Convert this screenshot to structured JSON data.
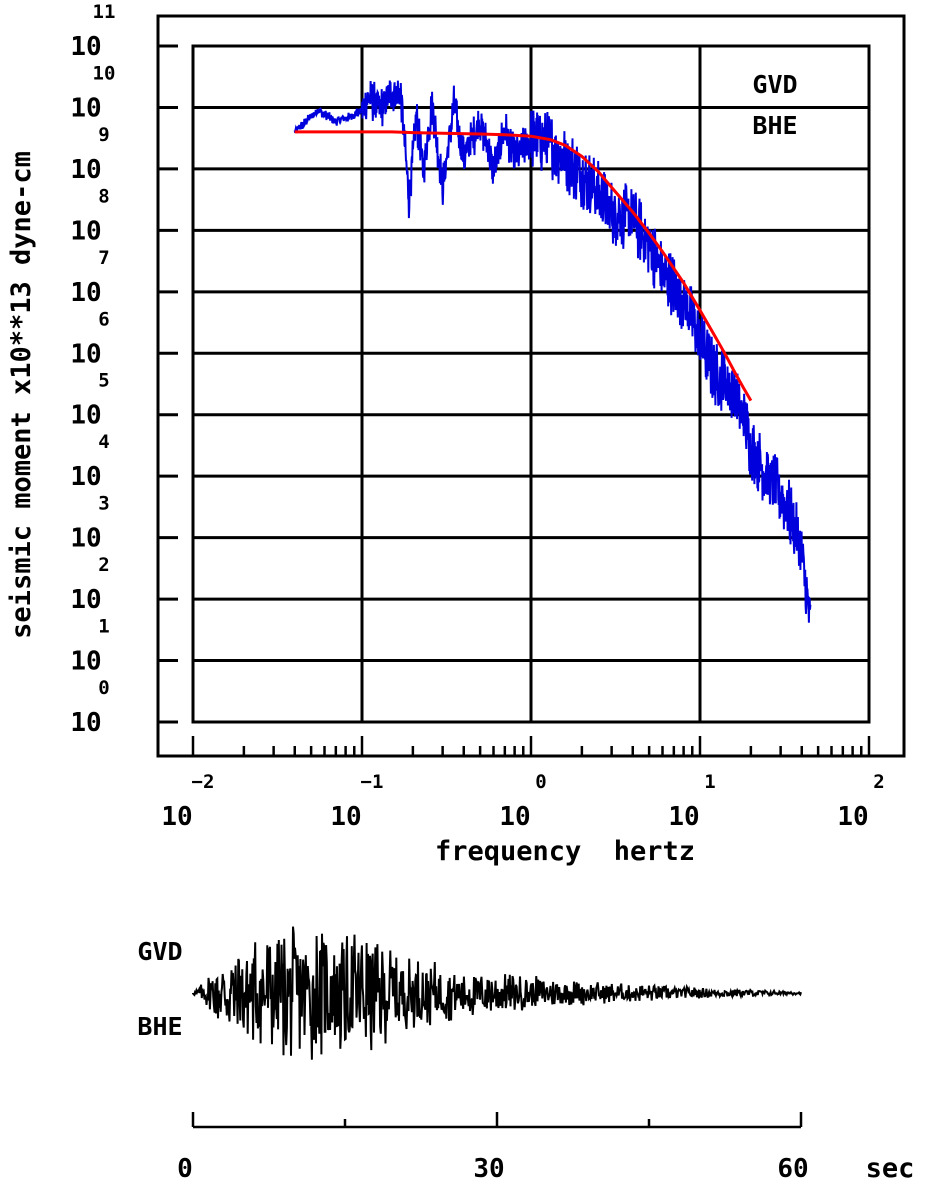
{
  "chart_data": [
    {
      "type": "line",
      "title": "",
      "xlabel": "frequency  hertz",
      "ylabel": "seismic moment x10**13 dyne-cm",
      "x_scale": "log",
      "y_scale": "log",
      "xlim": [
        0.01,
        100
      ],
      "ylim": [
        1,
        100000000000
      ],
      "grid": true,
      "x_ticks": [
        {
          "base": "10",
          "exp": "−2"
        },
        {
          "base": "10",
          "exp": "−1"
        },
        {
          "base": "10",
          "exp": "0"
        },
        {
          "base": "10",
          "exp": "1"
        },
        {
          "base": "10",
          "exp": "2"
        }
      ],
      "y_ticks": [
        {
          "base": "10",
          "exp": "0"
        },
        {
          "base": "10",
          "exp": "1"
        },
        {
          "base": "10",
          "exp": "2"
        },
        {
          "base": "10",
          "exp": "3"
        },
        {
          "base": "10",
          "exp": "4"
        },
        {
          "base": "10",
          "exp": "5"
        },
        {
          "base": "10",
          "exp": "6"
        },
        {
          "base": "10",
          "exp": "7"
        },
        {
          "base": "10",
          "exp": "8"
        },
        {
          "base": "10",
          "exp": "9"
        },
        {
          "base": "10",
          "exp": "10"
        },
        {
          "base": "10",
          "exp": "11"
        }
      ],
      "annotations": [
        "GVD",
        "BHE"
      ],
      "series": [
        {
          "color": "#0000dd",
          "x": [
            0.04,
            0.055,
            0.07,
            0.085,
            0.1,
            0.11,
            0.13,
            0.15,
            0.17,
            0.19,
            0.21,
            0.23,
            0.26,
            0.3,
            0.35,
            0.4,
            0.5,
            0.6,
            0.7,
            0.8,
            1.0,
            1.3,
            1.6,
            2.0,
            2.5,
            3.0,
            4.0,
            5.0,
            6.0,
            8.0,
            10.0,
            12.0,
            15.0,
            18.0,
            20.0,
            25.0,
            30.0,
            35.0,
            40.0,
            45.0
          ],
          "y": [
            4000000000,
            9000000000,
            6000000000,
            7000000000,
            9000000000,
            14000000000,
            10000000000,
            18000000000,
            16000000000,
            300000000,
            7000000000,
            900000000,
            12000000000,
            500000000,
            11000000000,
            1500000000,
            6000000000,
            1000000000,
            4500000000,
            1500000000,
            3000000000,
            2500000000,
            1500000000,
            800000000,
            400000000,
            200000000,
            150000000,
            60000000,
            20000000,
            8000000,
            1500000,
            500000,
            300000,
            100000,
            30000,
            10000,
            5000,
            2000,
            500,
            40
          ]
        },
        {
          "color": "#ff0000",
          "x": [
            0.04,
            0.06,
            0.1,
            0.15,
            0.2,
            0.3,
            0.5,
            0.7,
            1.0,
            1.3,
            1.6,
            2.0,
            2.5,
            3.0,
            4.0,
            5.0,
            6.0,
            8.0,
            10.0,
            12.0,
            14.0,
            16.0,
            18.0,
            20.0
          ],
          "y": [
            4000000000,
            4000000000,
            4000000000,
            4000000000,
            3900000000,
            3800000000,
            3700000000,
            3600000000,
            3400000000,
            3000000000,
            2400000000,
            1600000000,
            900000000,
            500000000,
            200000000,
            90000000,
            45000000,
            14000000,
            5000000,
            2100000,
            1000000,
            500000,
            280000,
            170000
          ]
        }
      ]
    },
    {
      "type": "line",
      "title": "",
      "xlabel": "sec",
      "ylabel": "",
      "xlim": [
        0,
        60
      ],
      "grid": false,
      "x_ticks": [
        "0",
        "30",
        "60"
      ],
      "annotations": [
        "GVD",
        "BHE"
      ],
      "series": [
        {
          "color": "#000000",
          "envelope_t": [
            0,
            1,
            2,
            4,
            6,
            8,
            10,
            12,
            14,
            16,
            18,
            20,
            25,
            30,
            35,
            40,
            45,
            50,
            55,
            60
          ],
          "envelope_amp": [
            0.02,
            0.15,
            0.4,
            0.7,
            0.85,
            0.9,
            0.95,
            1.0,
            0.92,
            0.9,
            0.88,
            0.6,
            0.4,
            0.3,
            0.22,
            0.16,
            0.12,
            0.08,
            0.05,
            0.02
          ]
        }
      ]
    }
  ]
}
